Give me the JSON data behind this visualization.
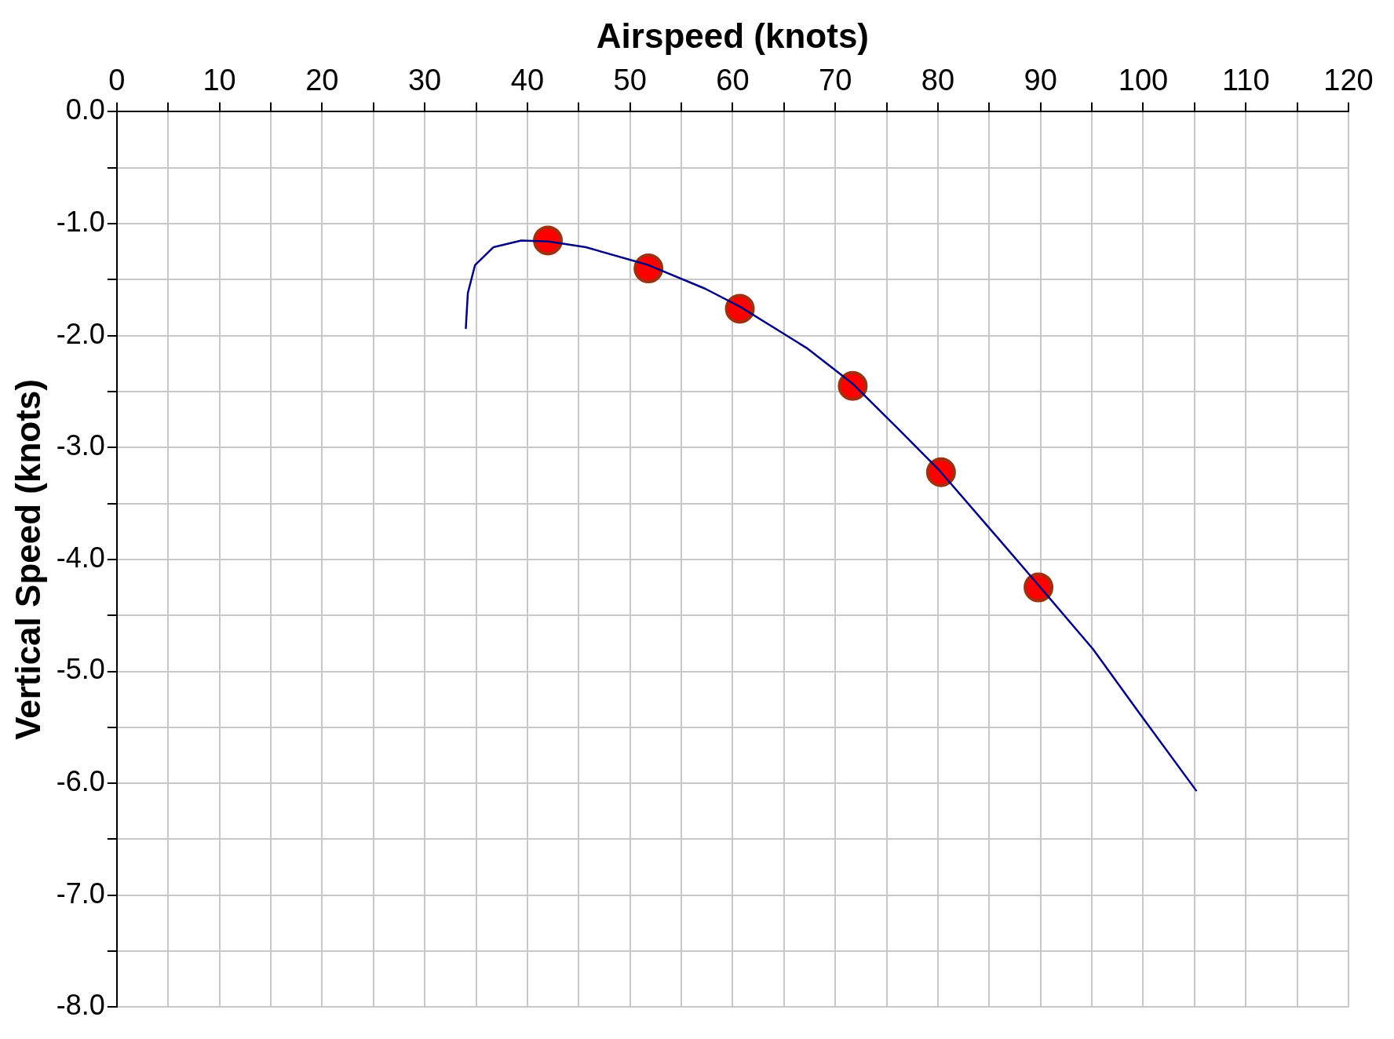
{
  "chart_data": {
    "type": "line",
    "xlabel": "Airspeed (knots)",
    "ylabel": "Vertical Speed (knots)",
    "xlim": [
      0,
      120
    ],
    "ylim": [
      -8,
      0
    ],
    "xticks": [
      0,
      {
        "value": 5,
        "label": null
      },
      10,
      {
        "value": 15,
        "label": null
      },
      20,
      {
        "value": 25,
        "label": null
      },
      30,
      {
        "value": 35,
        "label": null
      },
      40,
      {
        "value": 45,
        "label": null
      },
      50,
      {
        "value": 55,
        "label": null
      },
      60,
      {
        "value": 65,
        "label": null
      },
      70,
      {
        "value": 75,
        "label": null
      },
      80,
      {
        "value": 85,
        "label": null
      },
      90,
      {
        "value": 95,
        "label": null
      },
      100,
      {
        "value": 105,
        "label": null
      },
      110,
      {
        "value": 115,
        "label": null
      },
      120
    ],
    "yticks": [
      {
        "value": 0,
        "label": "0.0"
      },
      {
        "value": -0.5,
        "label": null
      },
      {
        "value": -1,
        "label": "-1.0"
      },
      {
        "value": -1.5,
        "label": null
      },
      {
        "value": -2,
        "label": "-2.0"
      },
      {
        "value": -2.5,
        "label": null
      },
      {
        "value": -3,
        "label": "-3.0"
      },
      {
        "value": -3.5,
        "label": null
      },
      {
        "value": -4,
        "label": "-4.0"
      },
      {
        "value": -4.5,
        "label": null
      },
      {
        "value": -5,
        "label": "-5.0"
      },
      {
        "value": -5.5,
        "label": null
      },
      {
        "value": -6,
        "label": "-6.0"
      },
      {
        "value": -6.5,
        "label": null
      },
      {
        "value": -7,
        "label": "-7.0"
      },
      {
        "value": -7.5,
        "label": null
      },
      {
        "value": -8,
        "label": "-8.0"
      }
    ],
    "grid": true,
    "series": [
      {
        "type": "line",
        "color": "#000080",
        "marker": "none",
        "x": [
          34.0,
          34.2,
          34.9,
          36.7,
          39.4,
          42.1,
          45.7,
          51.8,
          57.3,
          60.7,
          67.2,
          71.7,
          76.2,
          80.2,
          85.2,
          89.8,
          95.1,
          99.6,
          105.2
        ],
        "values": [
          -1.94,
          -1.62,
          -1.37,
          -1.21,
          -1.15,
          -1.16,
          -1.21,
          -1.37,
          -1.58,
          -1.74,
          -2.11,
          -2.43,
          -2.84,
          -3.21,
          -3.74,
          -4.23,
          -4.8,
          -5.37,
          -6.07
        ]
      },
      {
        "type": "scatter",
        "color": "#ff0000",
        "marker": "circle",
        "x": [
          42.0,
          51.8,
          60.7,
          71.7,
          80.3,
          89.8
        ],
        "values": [
          -1.15,
          -1.4,
          -1.76,
          -2.45,
          -3.22,
          -4.25
        ]
      }
    ]
  }
}
